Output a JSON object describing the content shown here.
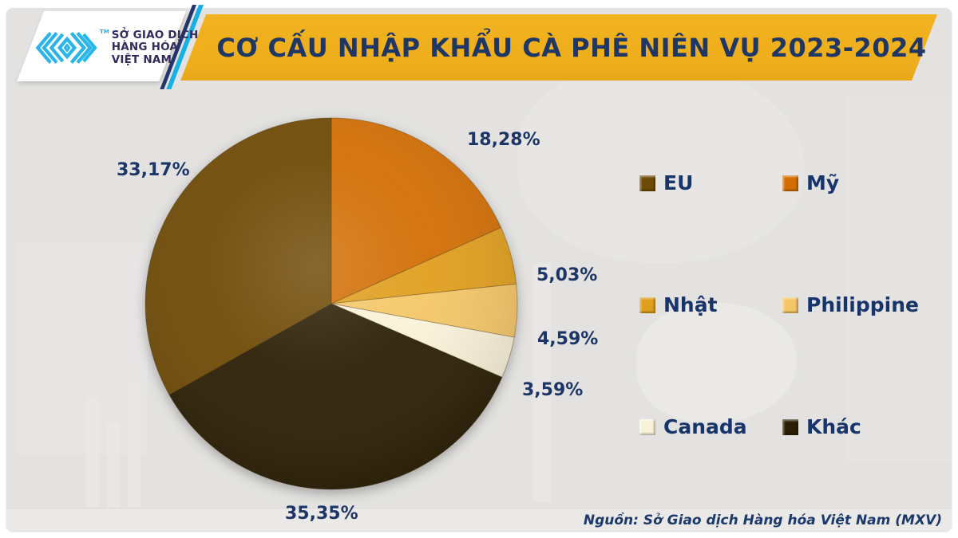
{
  "brand": {
    "org_lines": [
      "SỞ GIAO DỊCH",
      "HÀNG HÓA",
      "VIỆT NAM"
    ],
    "trademark": "TM",
    "logo_accent_color": "#29b5e8",
    "org_text_color": "#322b5e"
  },
  "header": {
    "title": "CƠ CẤU NHẬP KHẨU CÀ PHÊ NIÊN VỤ 2023-2024",
    "banner_bg": "#f0b01e",
    "title_color": "#1e3765"
  },
  "chart_data": {
    "type": "pie",
    "title": "CƠ CẤU NHẬP KHẨU CÀ PHÊ NIÊN VỤ 2023-2024",
    "unit": "percent",
    "start_angle_deg": -90,
    "direction": "clockwise",
    "label_color": "#1c3667",
    "legend_position": "right",
    "slices": [
      {
        "label": "EU",
        "value": 33.17,
        "display": "33,17%",
        "color": "#6f4a06"
      },
      {
        "label": "Mỹ",
        "value": 18.28,
        "display": "18,28%",
        "color": "#d26e04"
      },
      {
        "label": "Nhật",
        "value": 5.03,
        "display": "5,03%",
        "color": "#e09e1d"
      },
      {
        "label": "Philippine",
        "value": 4.59,
        "display": "4,59%",
        "color": "#f4c667"
      },
      {
        "label": "Canada",
        "value": 3.59,
        "display": "3,59%",
        "color": "#f9f2d9"
      },
      {
        "label": "Khác",
        "value": 35.35,
        "display": "35,35%",
        "color": "#2b1e04"
      }
    ],
    "draw_order": [
      1,
      2,
      3,
      4,
      5,
      0
    ]
  },
  "source_note": "Nguồn: Sở Giao dịch Hàng hóa Việt Nam (MXV)"
}
